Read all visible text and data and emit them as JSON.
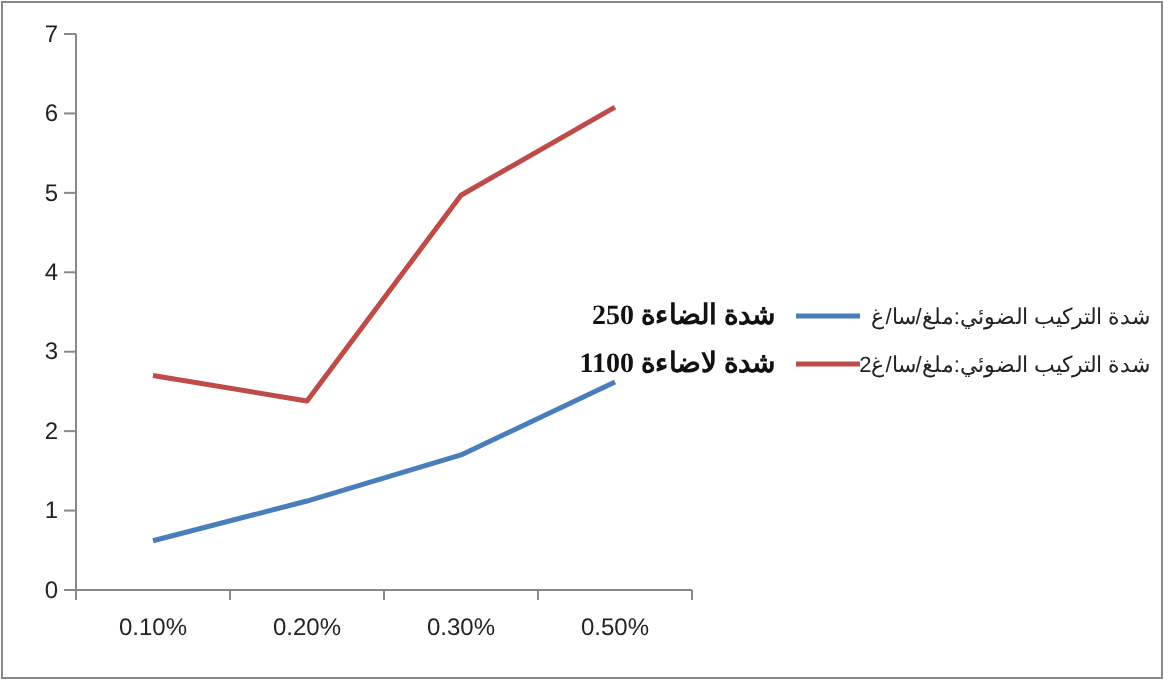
{
  "chart_data": {
    "type": "line",
    "categories": [
      "0.10%",
      "0.20%",
      "0.30%",
      "0.50%"
    ],
    "series": [
      {
        "name": "شدة التركيب الضوئي:ملغ/سا/غ",
        "color": "#4a7ebb",
        "values": [
          0.62,
          1.12,
          1.7,
          2.62
        ]
      },
      {
        "name": "شدة التركيب الضوئي:ملغ/سا/غ2",
        "color": "#be4b48",
        "values": [
          2.7,
          2.38,
          4.97,
          6.08
        ]
      }
    ],
    "ylim": [
      0,
      7
    ],
    "yticks": [
      0,
      1,
      2,
      3,
      4,
      5,
      6,
      7
    ],
    "grid": false,
    "legend": "right",
    "marker": "none",
    "annotations": [
      "شدة الضاءة 250",
      "شدة لاضاءة 1100"
    ]
  }
}
